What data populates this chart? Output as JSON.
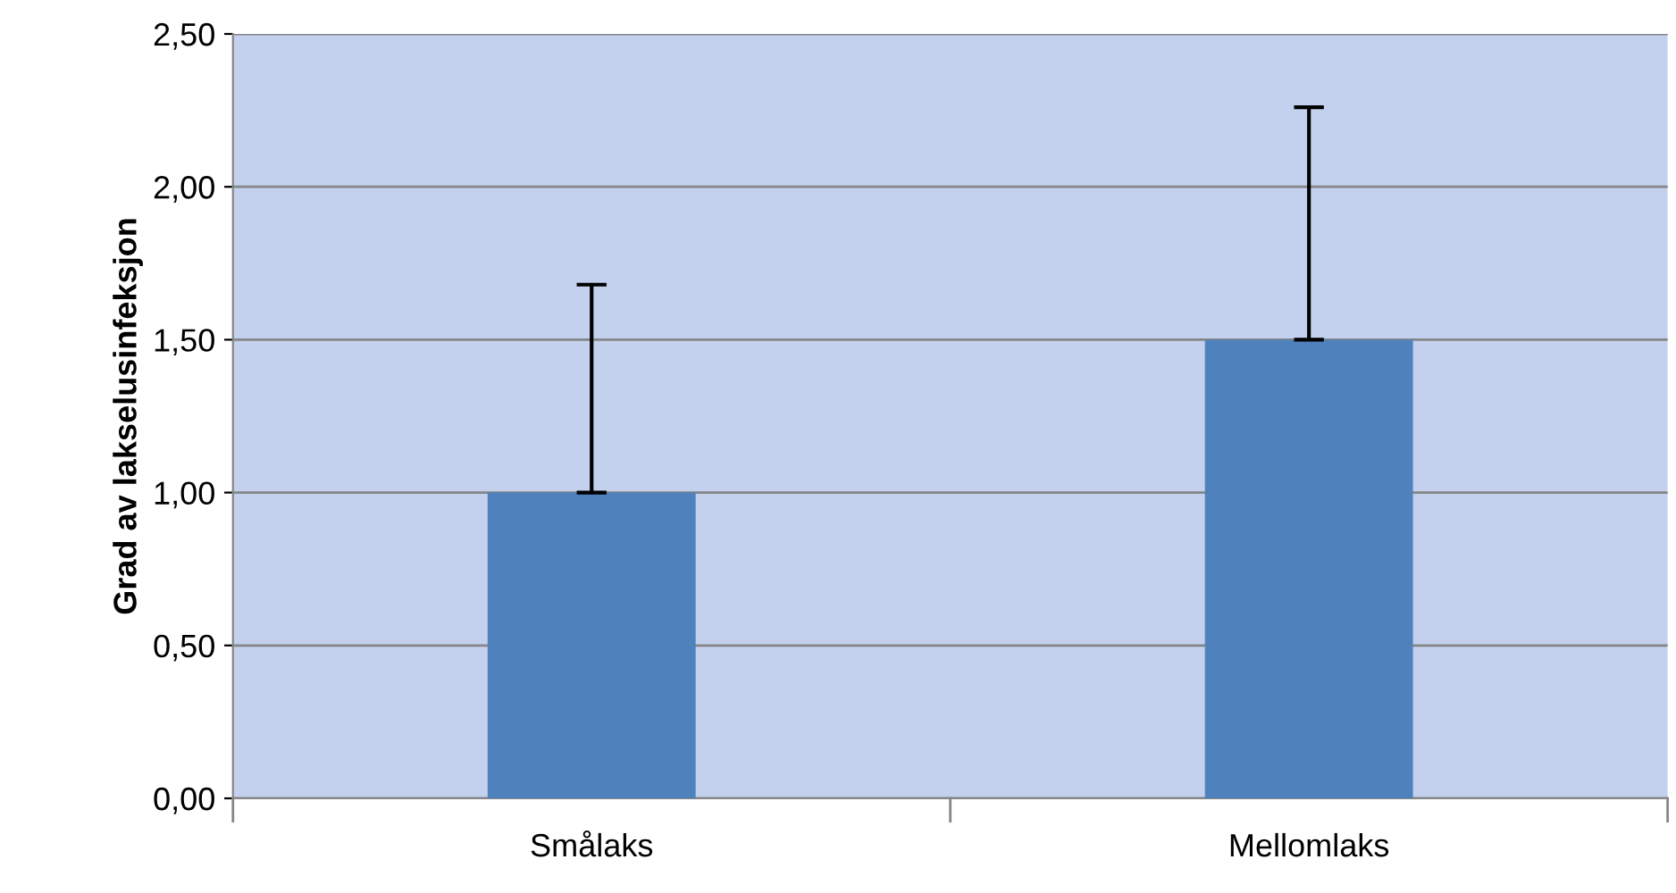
{
  "chart_data": {
    "type": "bar",
    "ylabel": "Grad av lakselusinfeksjon",
    "categories": [
      "Smålaks",
      "Mellomlaks"
    ],
    "values": [
      1.0,
      1.5
    ],
    "errors": [
      [
        1.0,
        1.68
      ],
      [
        1.5,
        2.26
      ]
    ],
    "color": "#4f81bd",
    "ylim": [
      0,
      2.5
    ],
    "yticks": [
      {
        "value": 0,
        "label": "0,00"
      },
      {
        "value": 0.5,
        "label": "0,50"
      },
      {
        "value": 1.0,
        "label": "1,00"
      },
      {
        "value": 1.5,
        "label": "1,50"
      },
      {
        "value": 2.0,
        "label": "2,00"
      },
      {
        "value": 2.5,
        "label": "2,50"
      }
    ],
    "grid": "y"
  }
}
